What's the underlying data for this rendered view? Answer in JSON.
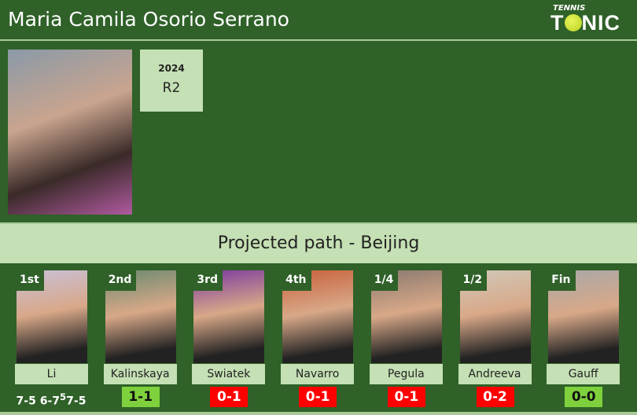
{
  "header": {
    "title": "Maria Camila Osorio Serrano",
    "logo_small": "TENNIS",
    "logo_big_pre": "T",
    "logo_big_post": "NIC"
  },
  "player": {
    "year": "2024",
    "result": "R2"
  },
  "banner": "Projected path - Beijing",
  "colors": {
    "background": "#2f6128",
    "panel": "#c5e0b4",
    "win": "#7ed13c",
    "loss": "#ff0000"
  },
  "path": [
    {
      "round": "1st",
      "name": "Li",
      "score": "7-5 6-7",
      "score_sup": "5",
      "score_post": "7-5",
      "type": "t"
    },
    {
      "round": "2nd",
      "name": "Kalinskaya",
      "score": "1-1",
      "type": "w"
    },
    {
      "round": "3rd",
      "name": "Swiatek",
      "score": "0-1",
      "type": "l"
    },
    {
      "round": "4th",
      "name": "Navarro",
      "score": "0-1",
      "type": "l"
    },
    {
      "round": "1/4",
      "name": "Pegula",
      "score": "0-1",
      "type": "l"
    },
    {
      "round": "1/2",
      "name": "Andreeva",
      "score": "0-2",
      "type": "l"
    },
    {
      "round": "Fin",
      "name": "Gauff",
      "score": "0-0",
      "type": "w"
    }
  ]
}
